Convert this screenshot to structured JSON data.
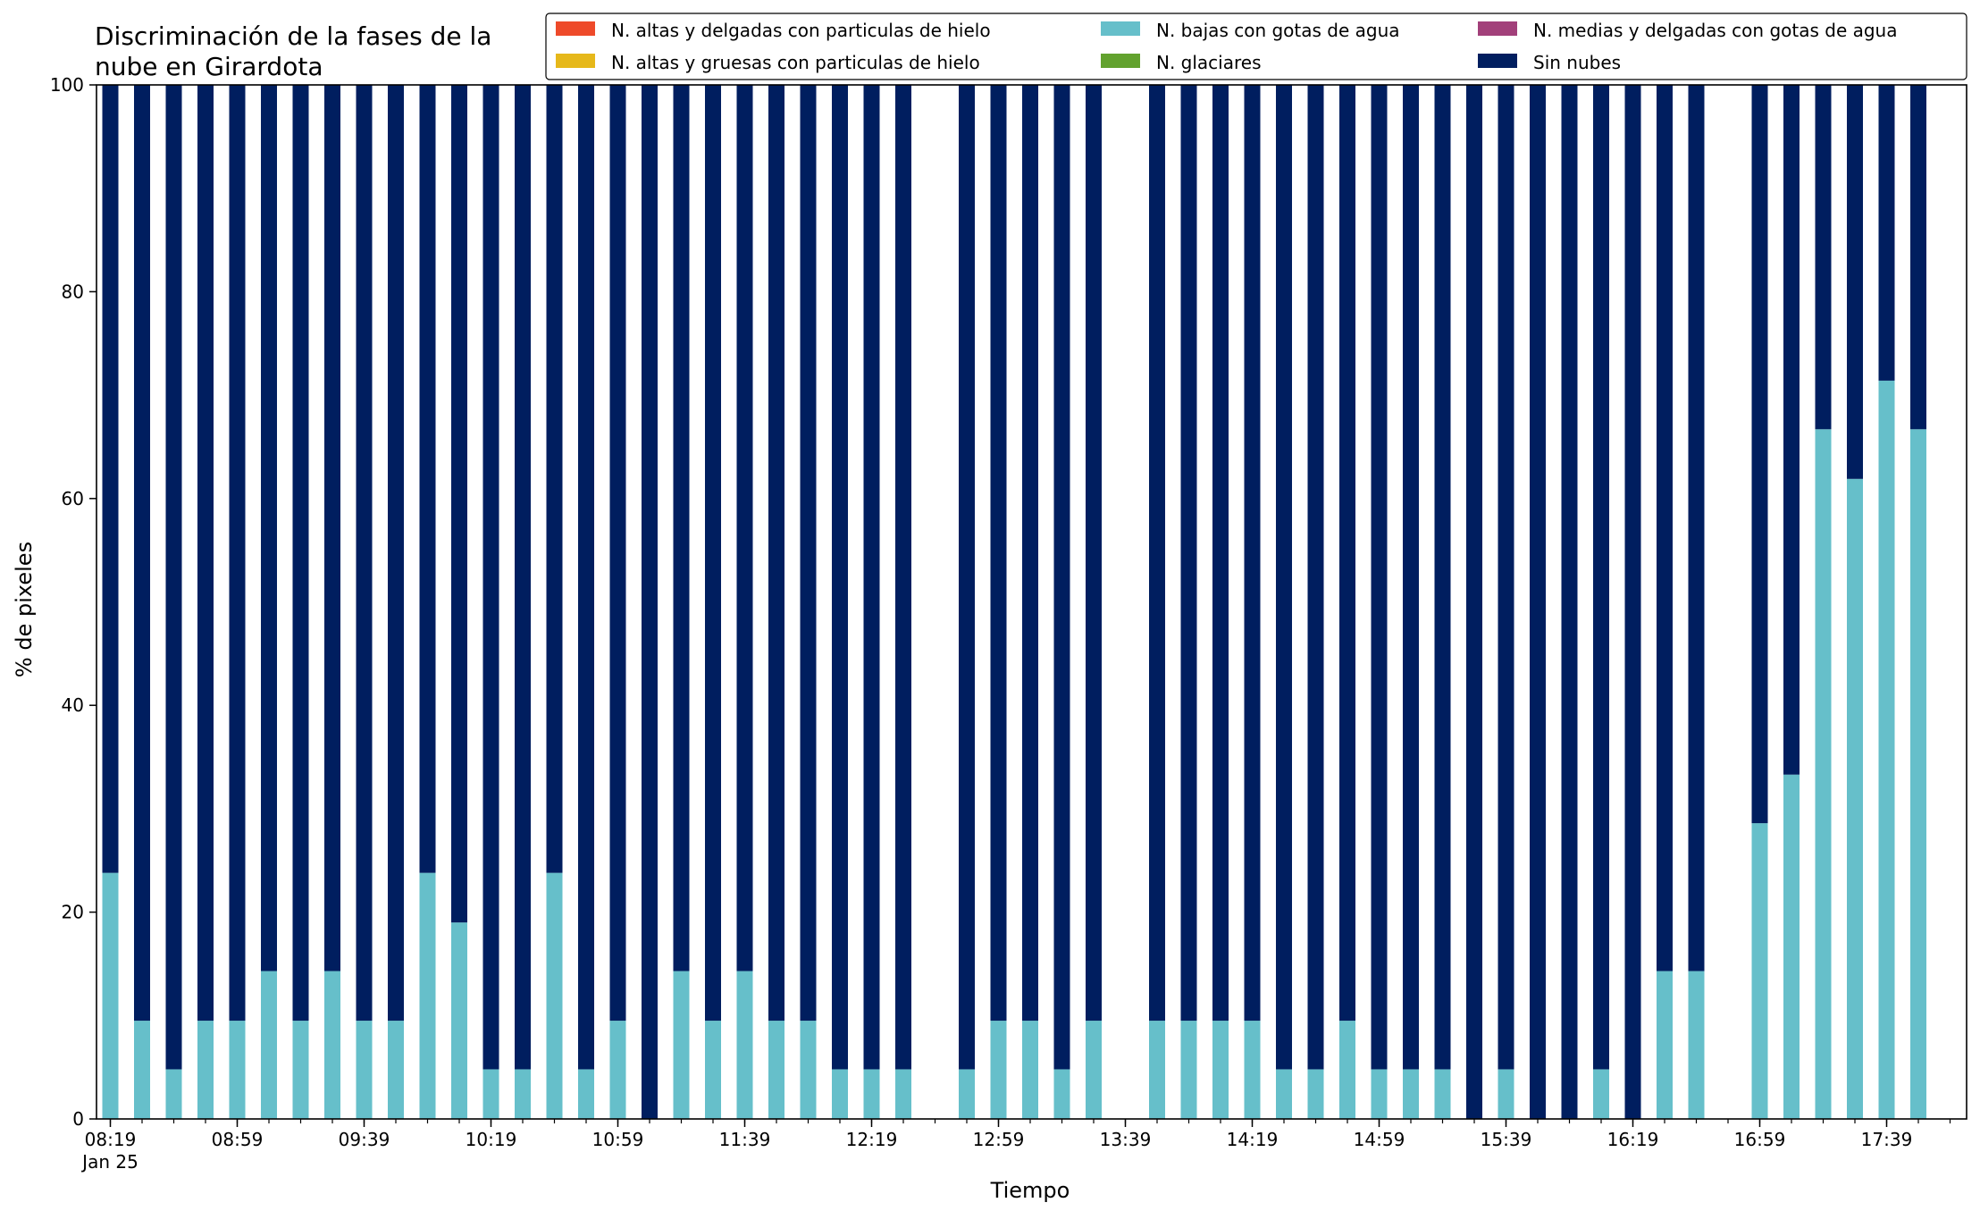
{
  "chart_data": {
    "type": "bar",
    "stacked": true,
    "title_line1": "Discriminación de la fases de la",
    "title_line2": "nube en Girardota",
    "xlabel": "Tiempo",
    "ylabel": "% de pixeles",
    "ylim": [
      0,
      100
    ],
    "yticks": [
      0,
      20,
      40,
      60,
      80,
      100
    ],
    "x_start": "08:19",
    "x_step_minutes": 10,
    "date_label": "Jan 25",
    "xtick_labels": [
      "08:19",
      "08:59",
      "09:39",
      "10:19",
      "10:59",
      "11:39",
      "12:19",
      "12:59",
      "13:39",
      "14:19",
      "14:59",
      "15:39",
      "16:19",
      "16:59",
      "17:39"
    ],
    "legend_location": "top-right",
    "series": [
      {
        "name": "N. altas y delgadas con particulas de hielo",
        "color": "#ee4a2a"
      },
      {
        "name": "N. altas y gruesas con particulas de hielo",
        "color": "#e6b81a"
      },
      {
        "name": "N. bajas con gotas de agua",
        "color": "#66bfca"
      },
      {
        "name": "N. glaciares",
        "color": "#62a22e"
      },
      {
        "name": "N. medias y delgadas con gotas de agua",
        "color": "#a2407a"
      },
      {
        "name": "Sin nubes",
        "color": "#001e5f"
      }
    ],
    "bars": [
      {
        "time": "08:19",
        "bajas": 23.8,
        "sin_nubes": 76.2
      },
      {
        "time": "08:29",
        "bajas": 9.5,
        "sin_nubes": 90.5
      },
      {
        "time": "08:39",
        "bajas": 4.8,
        "sin_nubes": 95.2
      },
      {
        "time": "08:49",
        "bajas": 9.5,
        "sin_nubes": 90.5
      },
      {
        "time": "08:59",
        "bajas": 9.5,
        "sin_nubes": 90.5
      },
      {
        "time": "09:09",
        "bajas": 14.3,
        "sin_nubes": 85.7
      },
      {
        "time": "09:19",
        "bajas": 9.5,
        "sin_nubes": 90.5
      },
      {
        "time": "09:29",
        "bajas": 14.3,
        "sin_nubes": 85.7
      },
      {
        "time": "09:39",
        "bajas": 9.5,
        "sin_nubes": 90.5
      },
      {
        "time": "09:49",
        "bajas": 9.5,
        "sin_nubes": 90.5
      },
      {
        "time": "09:59",
        "bajas": 23.8,
        "sin_nubes": 76.2
      },
      {
        "time": "10:09",
        "bajas": 19.0,
        "sin_nubes": 81.0
      },
      {
        "time": "10:19",
        "bajas": 4.8,
        "sin_nubes": 95.2
      },
      {
        "time": "10:29",
        "bajas": 4.8,
        "sin_nubes": 95.2
      },
      {
        "time": "10:39",
        "bajas": 23.8,
        "sin_nubes": 76.2
      },
      {
        "time": "10:49",
        "bajas": 4.8,
        "sin_nubes": 95.2
      },
      {
        "time": "10:59",
        "bajas": 9.5,
        "sin_nubes": 90.5
      },
      {
        "time": "11:09",
        "bajas": 0,
        "sin_nubes": 100
      },
      {
        "time": "11:19",
        "bajas": 14.3,
        "sin_nubes": 85.7
      },
      {
        "time": "11:29",
        "bajas": 9.5,
        "sin_nubes": 90.5
      },
      {
        "time": "11:39",
        "bajas": 14.3,
        "sin_nubes": 85.7
      },
      {
        "time": "11:49",
        "bajas": 9.5,
        "sin_nubes": 90.5
      },
      {
        "time": "11:59",
        "bajas": 9.5,
        "sin_nubes": 90.5
      },
      {
        "time": "12:09",
        "bajas": 4.8,
        "sin_nubes": 95.2
      },
      {
        "time": "12:19",
        "bajas": 4.8,
        "sin_nubes": 95.2
      },
      {
        "time": "12:29",
        "bajas": 4.8,
        "sin_nubes": 95.2
      },
      {
        "time": "12:49",
        "bajas": 4.8,
        "sin_nubes": 95.2
      },
      {
        "time": "12:59",
        "bajas": 9.5,
        "sin_nubes": 90.5
      },
      {
        "time": "13:09",
        "bajas": 9.5,
        "sin_nubes": 90.5
      },
      {
        "time": "13:19",
        "bajas": 4.8,
        "sin_nubes": 95.2
      },
      {
        "time": "13:29",
        "bajas": 9.5,
        "sin_nubes": 90.5
      },
      {
        "time": "13:49",
        "bajas": 9.5,
        "sin_nubes": 90.5
      },
      {
        "time": "13:59",
        "bajas": 9.5,
        "sin_nubes": 90.5
      },
      {
        "time": "14:09",
        "bajas": 9.5,
        "sin_nubes": 90.5
      },
      {
        "time": "14:19",
        "bajas": 9.5,
        "sin_nubes": 90.5
      },
      {
        "time": "14:29",
        "bajas": 4.8,
        "sin_nubes": 95.2
      },
      {
        "time": "14:39",
        "bajas": 4.8,
        "sin_nubes": 95.2
      },
      {
        "time": "14:49",
        "bajas": 9.5,
        "sin_nubes": 90.5
      },
      {
        "time": "14:59",
        "bajas": 4.8,
        "sin_nubes": 95.2
      },
      {
        "time": "15:09",
        "bajas": 4.8,
        "sin_nubes": 95.2
      },
      {
        "time": "15:19",
        "bajas": 4.8,
        "sin_nubes": 95.2
      },
      {
        "time": "15:29",
        "bajas": 0,
        "sin_nubes": 100
      },
      {
        "time": "15:39",
        "bajas": 4.8,
        "sin_nubes": 95.2
      },
      {
        "time": "15:49",
        "bajas": 0,
        "sin_nubes": 100
      },
      {
        "time": "15:59",
        "bajas": 0,
        "sin_nubes": 100
      },
      {
        "time": "16:09",
        "bajas": 4.8,
        "sin_nubes": 95.2
      },
      {
        "time": "16:19",
        "bajas": 0,
        "sin_nubes": 100
      },
      {
        "time": "16:29",
        "bajas": 14.3,
        "sin_nubes": 85.7
      },
      {
        "time": "16:39",
        "bajas": 14.3,
        "sin_nubes": 85.7
      },
      {
        "time": "16:59",
        "bajas": 28.6,
        "sin_nubes": 71.4
      },
      {
        "time": "17:09",
        "bajas": 33.3,
        "sin_nubes": 66.7
      },
      {
        "time": "17:19",
        "bajas": 66.7,
        "sin_nubes": 33.3
      },
      {
        "time": "17:29",
        "bajas": 61.9,
        "sin_nubes": 38.1
      },
      {
        "time": "17:39",
        "bajas": 71.4,
        "sin_nubes": 28.6
      },
      {
        "time": "17:49",
        "bajas": 66.7,
        "sin_nubes": 33.3
      }
    ]
  }
}
